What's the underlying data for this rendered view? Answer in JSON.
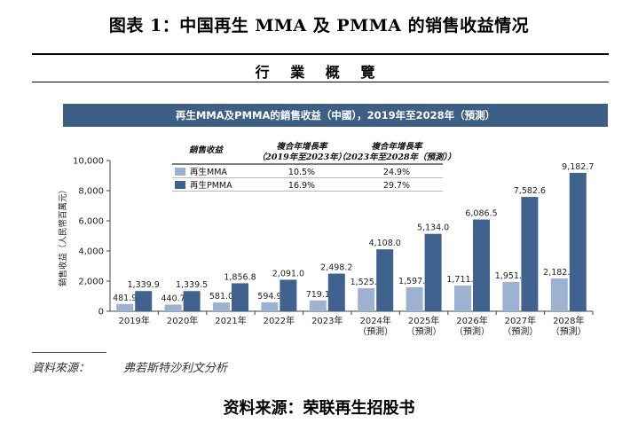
{
  "figure_title": "图表 1：中国再生 MMA 及 PMMA 的销售收益情况",
  "section_heading": "行 業 概 覽",
  "banner_title": "再生MMA及PMMA的銷售收益（中國），2019年至2028年（預測）",
  "source_note": {
    "label": "資料來源：",
    "text": "弗若斯特沙利文分析"
  },
  "bottom_source": "资料来源：荣联再生招股书",
  "colors": {
    "mma": "#9db2d1",
    "pmma": "#40628f",
    "banner": "#3d5e85"
  },
  "cagr_table": {
    "headers": [
      "銷售收益",
      "複合年增長率",
      "複合年增長率"
    ],
    "subheaders": [
      "",
      "（2019年至2023年）",
      "（2023年至2028年（預測））"
    ],
    "rows": [
      {
        "label": "再生MMA",
        "c1": "10.5%",
        "c2": "24.9%"
      },
      {
        "label": "再生PMMA",
        "c1": "16.9%",
        "c2": "29.7%"
      }
    ]
  },
  "chart_data": {
    "type": "bar",
    "ylabel": "銷售收益（人民幣百萬元）",
    "ylim": [
      0,
      10000
    ],
    "yticks": [
      "0",
      "2,000",
      "4,000",
      "6,000",
      "8,000",
      "10,000"
    ],
    "ytick_values": [
      0,
      2000,
      4000,
      6000,
      8000,
      10000
    ],
    "categories": [
      "2019年",
      "2020年",
      "2021年",
      "2022年",
      "2023年",
      "2024年",
      "2025年",
      "2026年",
      "2027年",
      "2028年"
    ],
    "category_notes": [
      "",
      "",
      "",
      "",
      "",
      "（預測）",
      "（預測）",
      "（預測）",
      "（預測）",
      "（預測）"
    ],
    "series": [
      {
        "name": "再生MMA",
        "values": [
          481.9,
          440.7,
          581.0,
          594.9,
          719.1,
          1525.6,
          1597.7,
          1711.4,
          1951.3,
          2182.3
        ],
        "labels": [
          "481.9",
          "440.7",
          "581.0",
          "594.9",
          "719.1",
          "1,525.6",
          "1,597.7",
          "1,711.4",
          "1,951.3",
          "2,182.3"
        ]
      },
      {
        "name": "再生PMMA",
        "values": [
          1339.9,
          1339.5,
          1856.8,
          2091.0,
          2498.2,
          4108.0,
          5134.0,
          6086.5,
          7582.6,
          9182.7
        ],
        "labels": [
          "1,339.9",
          "1,339.5",
          "1,856.8",
          "2,091.0",
          "2,498.2",
          "4,108.0",
          "5,134.0",
          "6,086.5",
          "7,582.6",
          "9,182.7"
        ]
      }
    ]
  }
}
